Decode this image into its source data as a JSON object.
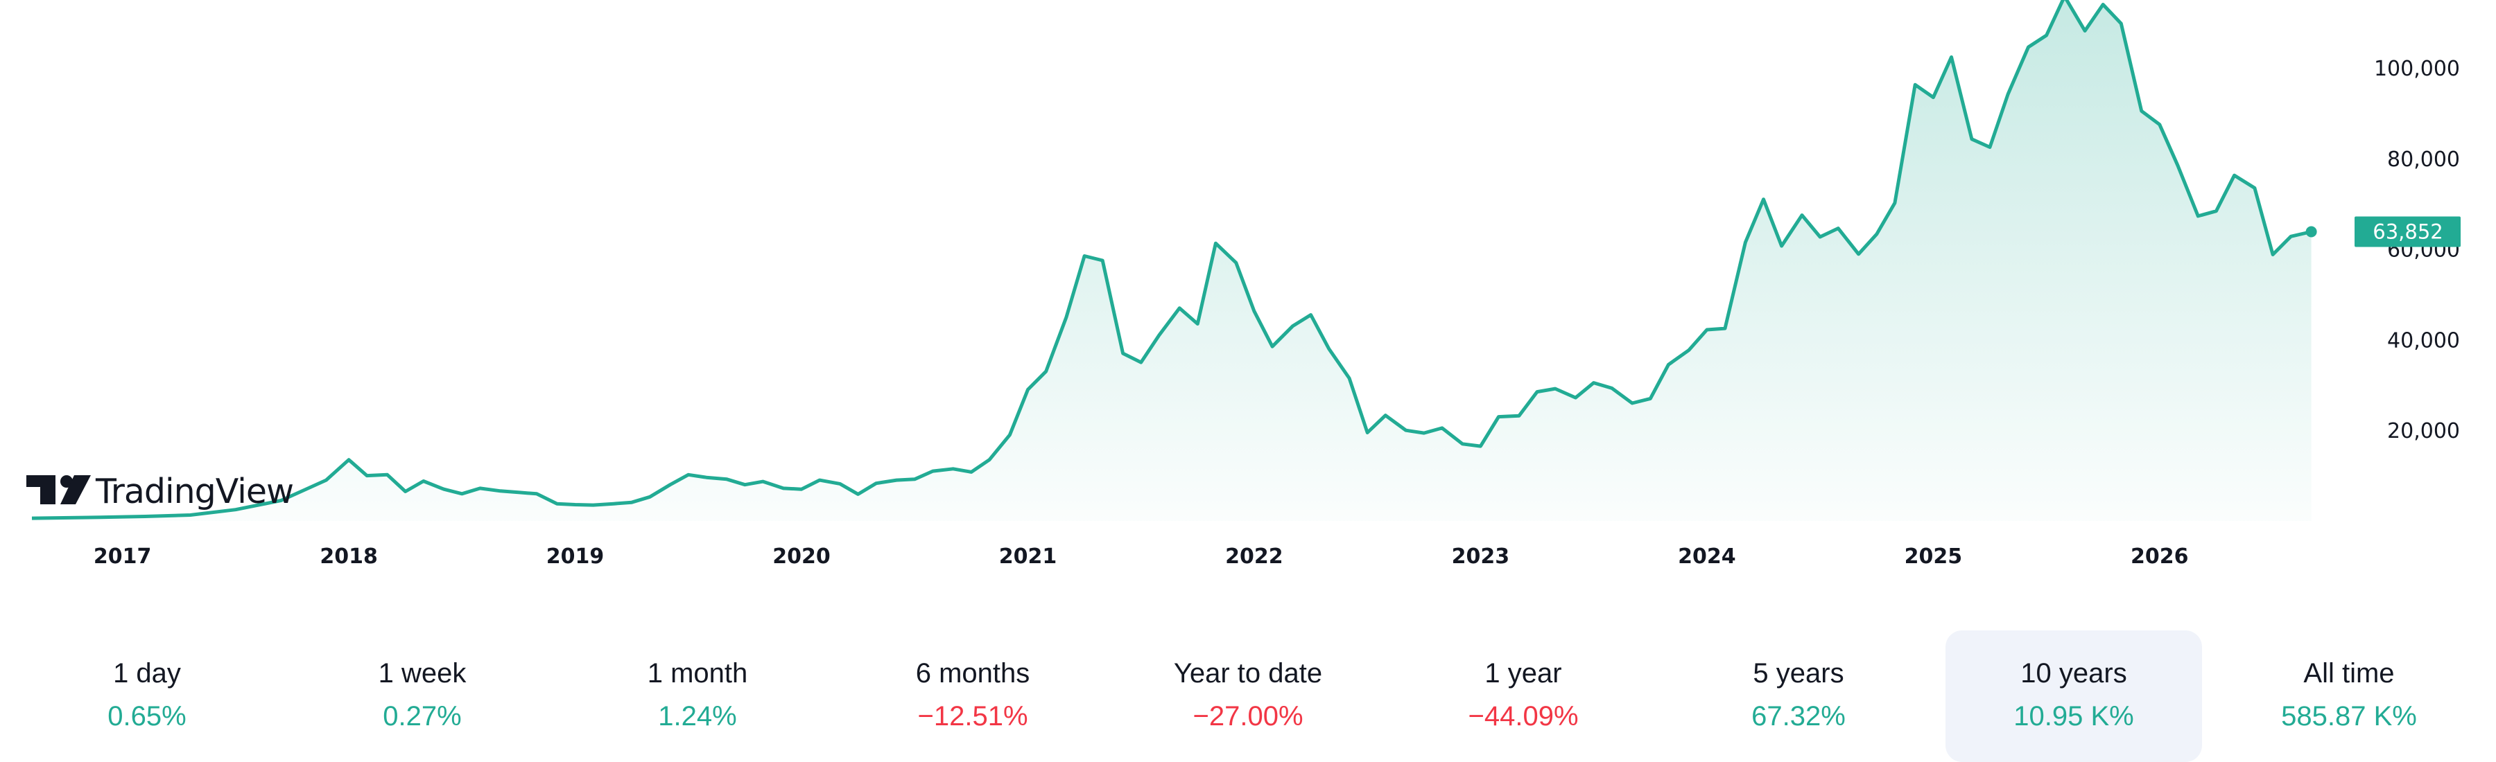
{
  "brand": {
    "name": "TradingView"
  },
  "colors": {
    "line": "#22ab94",
    "positive": "#22ab94",
    "negative": "#f23645",
    "selected_bg": "#f0f3fa"
  },
  "last_price_label": "63,852",
  "periods": [
    {
      "label": "1 day",
      "value": "0.65%",
      "trend": "positive",
      "selected": false
    },
    {
      "label": "1 week",
      "value": "0.27%",
      "trend": "positive",
      "selected": false
    },
    {
      "label": "1 month",
      "value": "1.24%",
      "trend": "positive",
      "selected": false
    },
    {
      "label": "6 months",
      "value": "−12.51%",
      "trend": "negative",
      "selected": false
    },
    {
      "label": "Year to date",
      "value": "−27.00%",
      "trend": "negative",
      "selected": false
    },
    {
      "label": "1 year",
      "value": "−44.09%",
      "trend": "negative",
      "selected": false
    },
    {
      "label": "5 years",
      "value": "67.32%",
      "trend": "positive",
      "selected": false
    },
    {
      "label": "10 years",
      "value": "10.95 K%",
      "trend": "positive",
      "selected": true
    },
    {
      "label": "All time",
      "value": "585.87 K%",
      "trend": "positive",
      "selected": false
    }
  ],
  "chart_data": {
    "type": "area",
    "title": "",
    "xlabel": "",
    "ylabel": "",
    "grid": false,
    "x_ticks": [
      "2017",
      "2018",
      "2019",
      "2020",
      "2021",
      "2022",
      "2023",
      "2024",
      "2025",
      "2026"
    ],
    "y_ticks": [
      {
        "value": 20000,
        "label": "20,000"
      },
      {
        "value": 40000,
        "label": "40,000"
      },
      {
        "value": 60000,
        "label": "60,000"
      },
      {
        "value": 80000,
        "label": "80,000"
      },
      {
        "value": 100000,
        "label": "100,000"
      }
    ],
    "xlim": [
      2016.6,
      2026.8
    ],
    "ylim": [
      0,
      115000
    ],
    "last_value": 63852,
    "series": [
      {
        "points": [
          [
            2016.6,
            600
          ],
          [
            2016.9,
            800
          ],
          [
            2017.1,
            1000
          ],
          [
            2017.3,
            1300
          ],
          [
            2017.5,
            2500
          ],
          [
            2017.7,
            4500
          ],
          [
            2017.9,
            9000
          ],
          [
            2018.0,
            13500
          ],
          [
            2018.08,
            10000
          ],
          [
            2018.17,
            10200
          ],
          [
            2018.25,
            6500
          ],
          [
            2018.33,
            8800
          ],
          [
            2018.42,
            7000
          ],
          [
            2018.5,
            6000
          ],
          [
            2018.58,
            7200
          ],
          [
            2018.67,
            6600
          ],
          [
            2018.75,
            6300
          ],
          [
            2018.83,
            6000
          ],
          [
            2018.92,
            3800
          ],
          [
            2019.0,
            3600
          ],
          [
            2019.08,
            3500
          ],
          [
            2019.17,
            3800
          ],
          [
            2019.25,
            4100
          ],
          [
            2019.33,
            5300
          ],
          [
            2019.42,
            8000
          ],
          [
            2019.5,
            10200
          ],
          [
            2019.58,
            9600
          ],
          [
            2019.67,
            9200
          ],
          [
            2019.75,
            8000
          ],
          [
            2019.83,
            8700
          ],
          [
            2019.92,
            7200
          ],
          [
            2020.0,
            7000
          ],
          [
            2020.08,
            9000
          ],
          [
            2020.17,
            8200
          ],
          [
            2020.25,
            5900
          ],
          [
            2020.33,
            8300
          ],
          [
            2020.42,
            9000
          ],
          [
            2020.5,
            9200
          ],
          [
            2020.58,
            11000
          ],
          [
            2020.67,
            11500
          ],
          [
            2020.75,
            10800
          ],
          [
            2020.83,
            13500
          ],
          [
            2020.92,
            19000
          ],
          [
            2021.0,
            29000
          ],
          [
            2021.08,
            33000
          ],
          [
            2021.17,
            45000
          ],
          [
            2021.25,
            58500
          ],
          [
            2021.33,
            57500
          ],
          [
            2021.42,
            37000
          ],
          [
            2021.5,
            35000
          ],
          [
            2021.58,
            41000
          ],
          [
            2021.67,
            47000
          ],
          [
            2021.75,
            43500
          ],
          [
            2021.83,
            61300
          ],
          [
            2021.92,
            57000
          ],
          [
            2022.0,
            46300
          ],
          [
            2022.08,
            38500
          ],
          [
            2022.17,
            43000
          ],
          [
            2022.25,
            45500
          ],
          [
            2022.33,
            38000
          ],
          [
            2022.42,
            31500
          ],
          [
            2022.5,
            19500
          ],
          [
            2022.58,
            23300
          ],
          [
            2022.67,
            20000
          ],
          [
            2022.75,
            19400
          ],
          [
            2022.83,
            20500
          ],
          [
            2022.92,
            17000
          ],
          [
            2023.0,
            16500
          ],
          [
            2023.08,
            23000
          ],
          [
            2023.17,
            23200
          ],
          [
            2023.25,
            28500
          ],
          [
            2023.33,
            29200
          ],
          [
            2023.42,
            27200
          ],
          [
            2023.5,
            30500
          ],
          [
            2023.58,
            29300
          ],
          [
            2023.67,
            26000
          ],
          [
            2023.75,
            27000
          ],
          [
            2023.83,
            34500
          ],
          [
            2023.92,
            37700
          ],
          [
            2024.0,
            42200
          ],
          [
            2024.08,
            42500
          ],
          [
            2024.17,
            61500
          ],
          [
            2024.25,
            71000
          ],
          [
            2024.33,
            60700
          ],
          [
            2024.42,
            67500
          ],
          [
            2024.5,
            62700
          ],
          [
            2024.58,
            64600
          ],
          [
            2024.67,
            58900
          ],
          [
            2024.75,
            63300
          ],
          [
            2024.83,
            70200
          ],
          [
            2024.92,
            96300
          ],
          [
            2025.0,
            93500
          ],
          [
            2025.08,
            102400
          ],
          [
            2025.17,
            84300
          ],
          [
            2025.25,
            82500
          ],
          [
            2025.33,
            94200
          ],
          [
            2025.42,
            104600
          ],
          [
            2025.5,
            107200
          ],
          [
            2025.58,
            115800
          ],
          [
            2025.67,
            108200
          ],
          [
            2025.75,
            114000
          ],
          [
            2025.83,
            109800
          ],
          [
            2025.92,
            90500
          ],
          [
            2026.0,
            87500
          ],
          [
            2026.08,
            78500
          ],
          [
            2026.17,
            67300
          ],
          [
            2026.25,
            68400
          ],
          [
            2026.33,
            76300
          ],
          [
            2026.42,
            73500
          ],
          [
            2026.5,
            58800
          ],
          [
            2026.58,
            62800
          ],
          [
            2026.67,
            63852
          ]
        ]
      }
    ]
  }
}
